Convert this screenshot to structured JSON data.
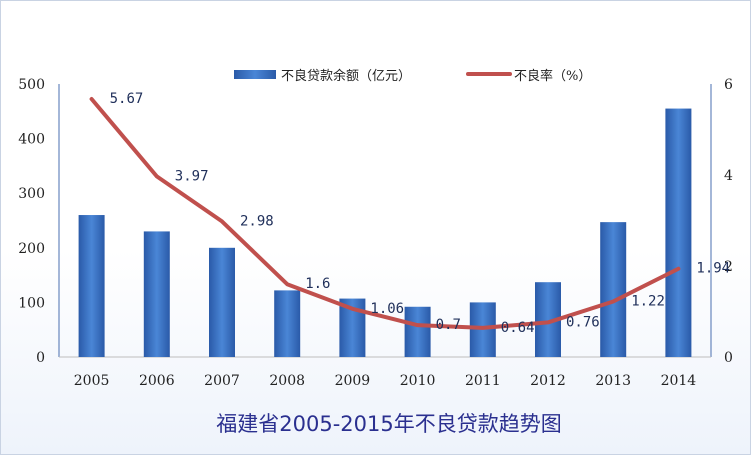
{
  "chart_data": {
    "type": "bar+line",
    "title": "福建省2005-2015年不良贷款趋势图",
    "categories": [
      "2005",
      "2006",
      "2007",
      "2008",
      "2009",
      "2010",
      "2011",
      "2012",
      "2013",
      "2014"
    ],
    "series": [
      {
        "name": "不良贷款余额（亿元）",
        "type": "bar",
        "axis": "left",
        "values": [
          260,
          230,
          200,
          122,
          107,
          92,
          100,
          137,
          247,
          455
        ],
        "color": "#2f63b4"
      },
      {
        "name": "不良率（%）",
        "type": "line",
        "axis": "right",
        "values": [
          5.67,
          3.97,
          2.98,
          1.6,
          1.06,
          0.7,
          0.64,
          0.76,
          1.22,
          1.94
        ],
        "labels": [
          "5.67",
          "3.97",
          "2.98",
          "1.6",
          "1.06",
          "0.7",
          "0.64",
          "0.76",
          "1.22",
          "1.94"
        ],
        "color": "#c0504d"
      }
    ],
    "left_axis": {
      "min": 0,
      "max": 500,
      "ticks": [
        "0",
        "100",
        "200",
        "300",
        "400",
        "500"
      ]
    },
    "right_axis": {
      "min": 0,
      "max": 6,
      "ticks": [
        "0",
        "2",
        "4",
        "6"
      ]
    },
    "legend_position": "top-center",
    "grid": false
  }
}
